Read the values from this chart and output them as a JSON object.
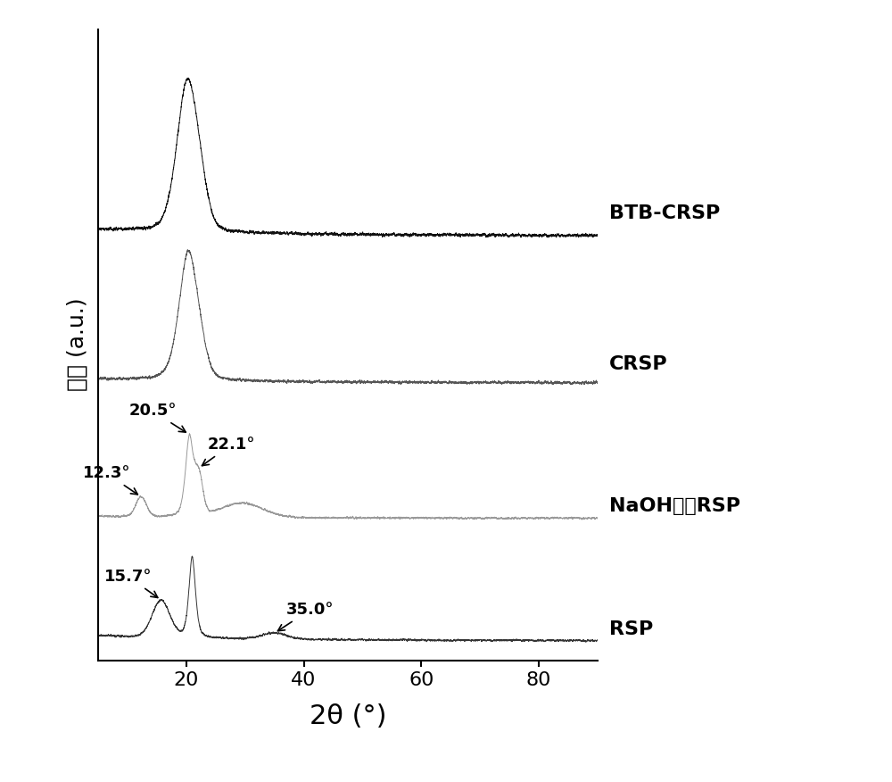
{
  "xlabel": "2θ (°)",
  "ylabel": "强度 (a.u.)",
  "xlim": [
    5,
    90
  ],
  "labels": [
    "BTB-CRSP",
    "CRSP",
    "NaOH处理RSP",
    "RSP"
  ],
  "colors": [
    "#111111",
    "#555555",
    "#999999",
    "#333333"
  ],
  "offsets": [
    0.68,
    0.44,
    0.22,
    0.02
  ],
  "scales": [
    0.26,
    0.22,
    0.14,
    0.14
  ],
  "xlabel_fontsize": 22,
  "ylabel_fontsize": 18,
  "label_fontsize": 16,
  "annotation_fontsize": 13,
  "tick_fontsize": 16,
  "noise_amp": 0.004
}
